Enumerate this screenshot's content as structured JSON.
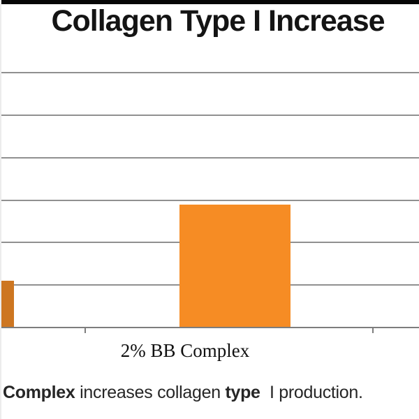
{
  "page": {
    "background_color": "#ffffff",
    "top_strip_color": "#060606"
  },
  "chart_data": {
    "type": "bar",
    "title": "Collagen Type I Increase",
    "categories": [
      "",
      "2% BB Complex"
    ],
    "values_gridline_units": [
      1.09,
      2.88
    ],
    "left_bar_cropped_at_edge": true,
    "y_axis_tick_labels_visible": false,
    "xlabel": "",
    "ylabel": "",
    "grid": true,
    "gridline_intervals": 6,
    "legend": false,
    "bar_colors": [
      "#cd7621",
      "#f68c24"
    ],
    "gridline_color": "#909090",
    "axis_color": "#7d7d7d"
  },
  "caption": {
    "full_text": "Complex increases collagen type I production.",
    "segments": [
      {
        "text": "Complex",
        "bold": true
      },
      {
        "text": " increases collagen ",
        "bold": false
      },
      {
        "text": "type",
        "bold": true
      },
      {
        "text": "  I production.",
        "bold": false
      }
    ]
  }
}
